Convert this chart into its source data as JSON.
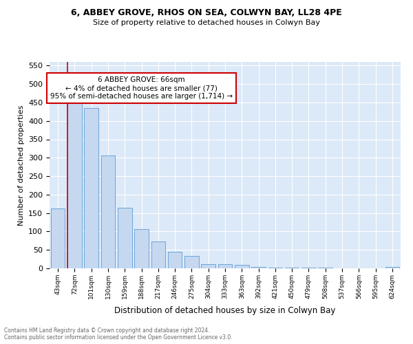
{
  "title1": "6, ABBEY GROVE, RHOS ON SEA, COLWYN BAY, LL28 4PE",
  "title2": "Size of property relative to detached houses in Colwyn Bay",
  "xlabel": "Distribution of detached houses by size in Colwyn Bay",
  "ylabel": "Number of detached properties",
  "bins": [
    "43sqm",
    "72sqm",
    "101sqm",
    "130sqm",
    "159sqm",
    "188sqm",
    "217sqm",
    "246sqm",
    "275sqm",
    "304sqm",
    "333sqm",
    "363sqm",
    "392sqm",
    "421sqm",
    "450sqm",
    "479sqm",
    "508sqm",
    "537sqm",
    "566sqm",
    "595sqm",
    "624sqm"
  ],
  "values": [
    163,
    450,
    435,
    306,
    165,
    106,
    73,
    44,
    33,
    11,
    11,
    9,
    4,
    2,
    1,
    1,
    1,
    0,
    0,
    0,
    4
  ],
  "bar_color": "#c5d8f0",
  "bar_edge_color": "#5b9bd5",
  "marker_color": "#cc0000",
  "annotation_text": "6 ABBEY GROVE: 66sqm\n← 4% of detached houses are smaller (77)\n95% of semi-detached houses are larger (1,714) →",
  "annotation_box_color": "#ffffff",
  "annotation_box_edge_color": "#cc0000",
  "footer1": "Contains HM Land Registry data © Crown copyright and database right 2024.",
  "footer2": "Contains public sector information licensed under the Open Government Licence v3.0.",
  "ylim": [
    0,
    560
  ],
  "yticks": [
    0,
    50,
    100,
    150,
    200,
    250,
    300,
    350,
    400,
    450,
    500,
    550
  ],
  "bar_color_highlight": "#c5d8f0",
  "plot_bg_color": "#dce9f8"
}
